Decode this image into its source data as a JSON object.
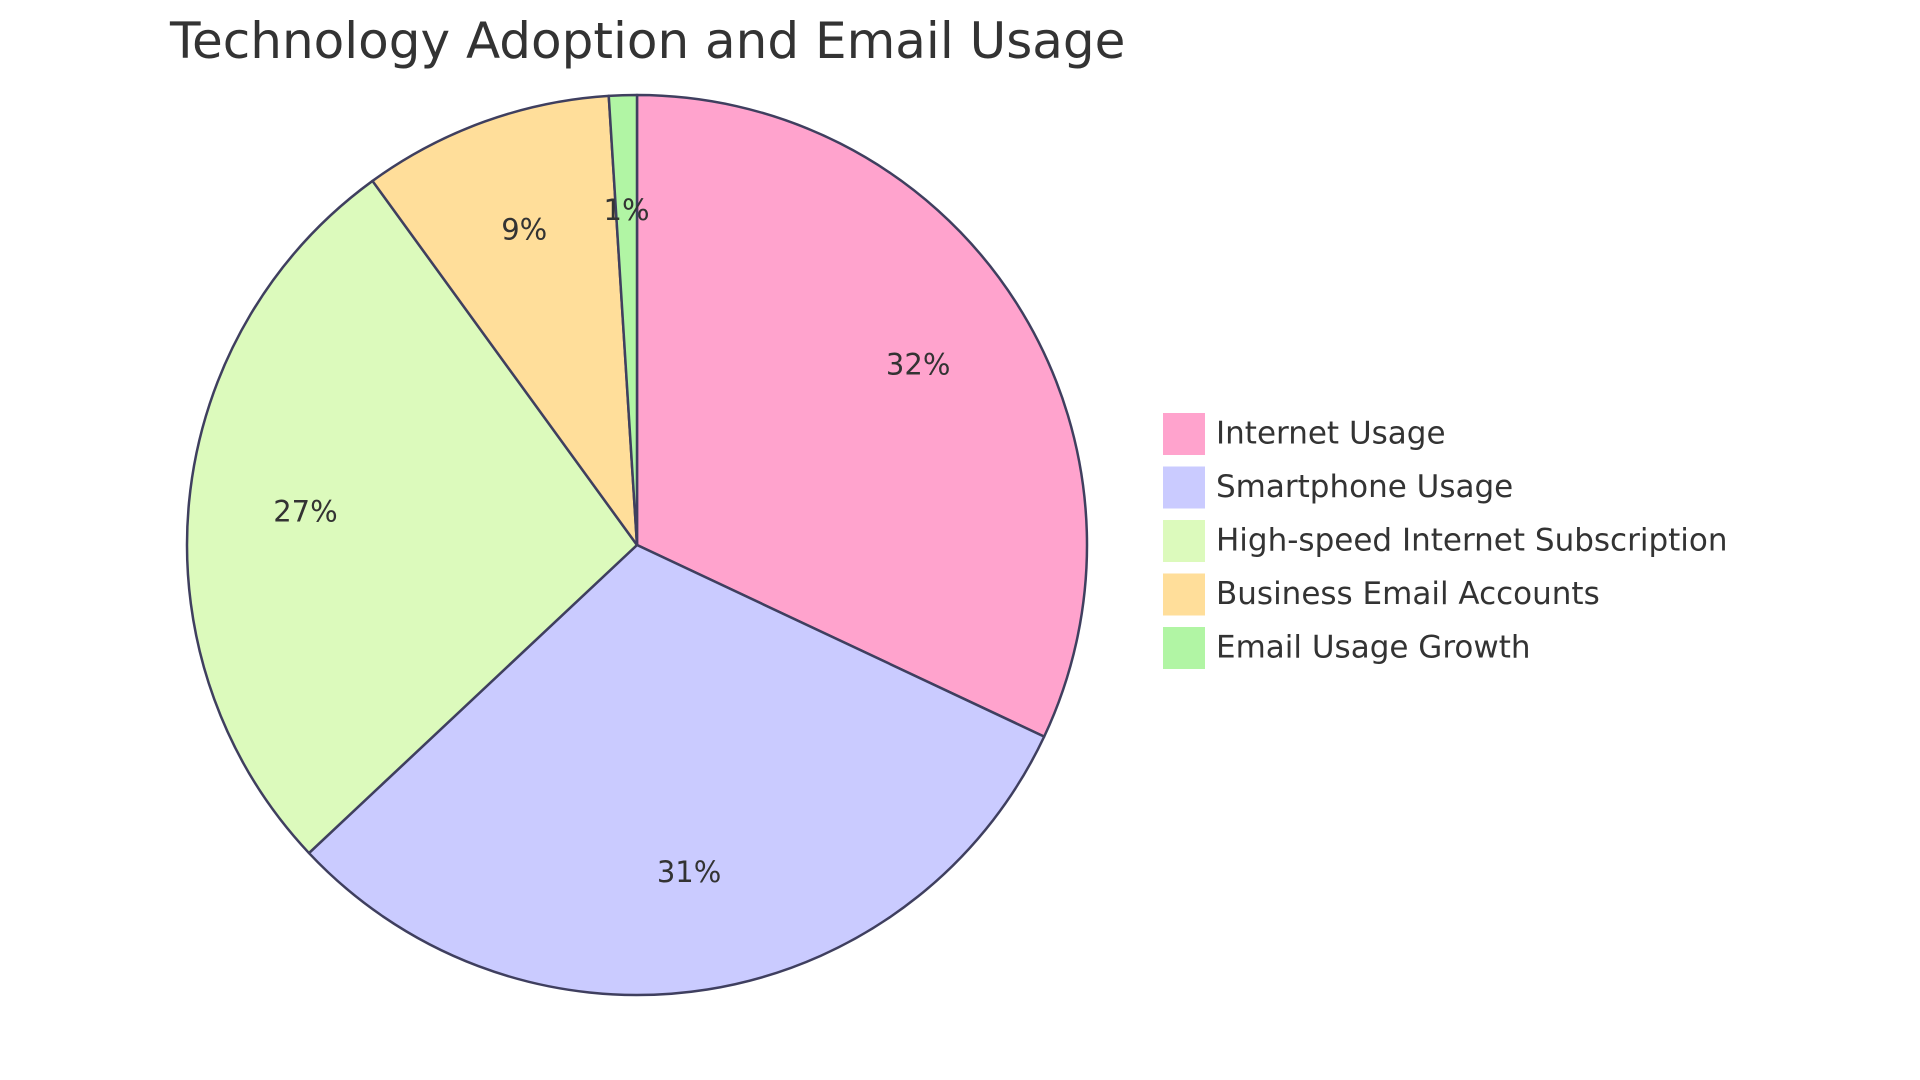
{
  "chart_data": {
    "type": "pie",
    "title": "Technology Adoption and Email Usage",
    "slices": [
      {
        "name": "Internet Usage",
        "value": 32,
        "label": "32%",
        "color": "#FFA3CD"
      },
      {
        "name": "Smartphone Usage",
        "value": 31,
        "label": "31%",
        "color": "#CACBFF"
      },
      {
        "name": "High-speed Internet Subscription",
        "value": 27,
        "label": "27%",
        "color": "#DCFABC"
      },
      {
        "name": "Business Email Accounts",
        "value": 9,
        "label": "9%",
        "color": "#FFDE9A"
      },
      {
        "name": "Email Usage Growth",
        "value": 1,
        "label": "1%",
        "color": "#B1F5A4"
      }
    ],
    "legend_position": "right",
    "outline_color": "#3F3F5F"
  }
}
